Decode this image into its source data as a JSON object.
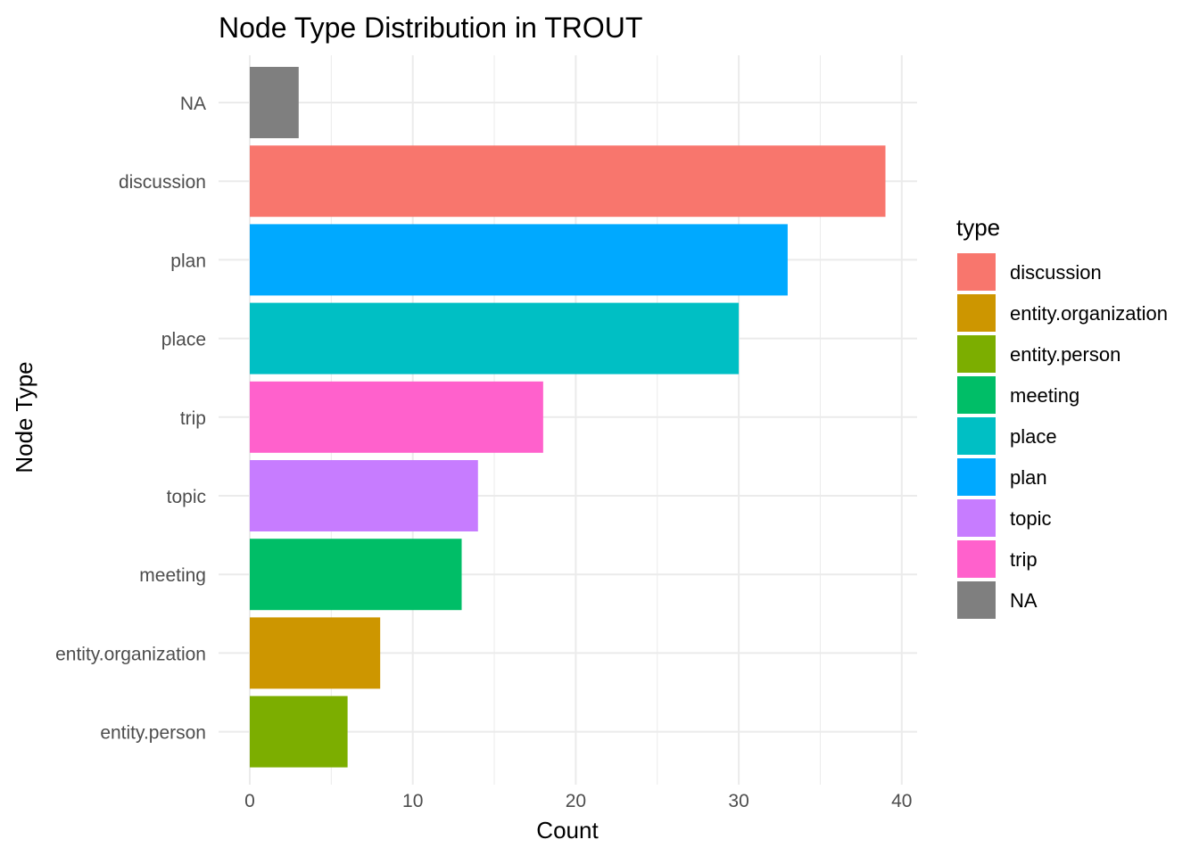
{
  "chart_data": {
    "type": "bar",
    "orientation": "horizontal",
    "title": "Node Type Distribution in TROUT",
    "xlabel": "Count",
    "ylabel": "Node Type",
    "xlim": [
      0,
      41
    ],
    "x_ticks": [
      0,
      10,
      20,
      30,
      40
    ],
    "grid": true,
    "legend_position": "right",
    "legend_title": "type",
    "categories": [
      "NA",
      "discussion",
      "plan",
      "place",
      "trip",
      "topic",
      "meeting",
      "entity.organization",
      "entity.person"
    ],
    "values": [
      3,
      39,
      33,
      30,
      18,
      14,
      13,
      8,
      6
    ],
    "colors": {
      "discussion": "#F8766D",
      "entity.organization": "#CD9600",
      "entity.person": "#7CAE00",
      "meeting": "#00BE67",
      "place": "#00BFC4",
      "plan": "#00A9FF",
      "topic": "#C77CFF",
      "trip": "#FF61CC",
      "NA": "#7F7F7F"
    },
    "legend_entries": [
      "discussion",
      "entity.organization",
      "entity.person",
      "meeting",
      "place",
      "plan",
      "topic",
      "trip",
      "NA"
    ]
  }
}
